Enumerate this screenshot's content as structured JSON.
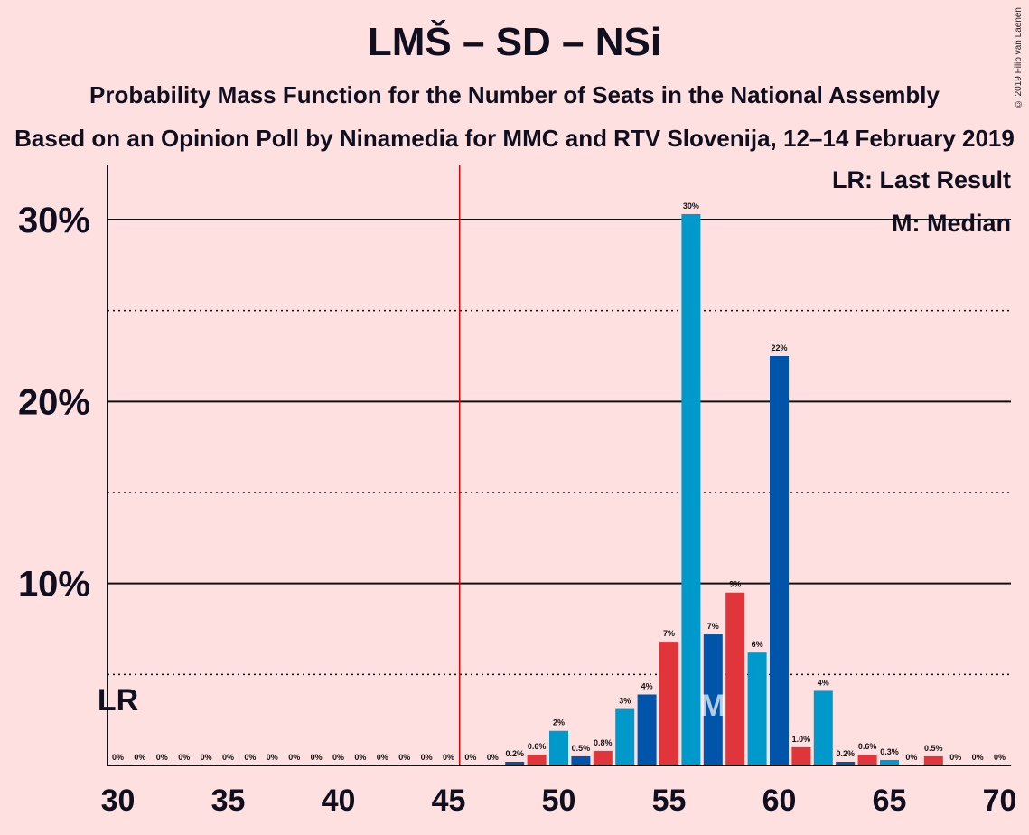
{
  "title": "LMŠ – SD – NSi",
  "subtitle1": "Probability Mass Function for the Number of Seats in the National Assembly",
  "subtitle2": "Based on an Opinion Poll by Ninamedia for MMC and RTV Slovenija, 12–14 February 2019",
  "copyright": "© 2019 Filip van Laenen",
  "legend": {
    "lr": "LR: Last Result",
    "median": "M: Median"
  },
  "colors": {
    "bg": "#ffe0e0",
    "cyan": "#0099cc",
    "blue": "#0055aa",
    "red": "#e0353b",
    "majority_line": "#dd0000"
  },
  "chart_data": {
    "type": "bar",
    "x": [
      30,
      31,
      32,
      33,
      34,
      35,
      36,
      37,
      38,
      39,
      40,
      41,
      42,
      43,
      44,
      45,
      46,
      47,
      48,
      49,
      50,
      51,
      52,
      53,
      54,
      55,
      56,
      57,
      58,
      59,
      60,
      61,
      62,
      63,
      64,
      65,
      66,
      67,
      68,
      69,
      70
    ],
    "values": [
      0,
      0,
      0,
      0,
      0,
      0,
      0,
      0,
      0,
      0,
      0,
      0,
      0,
      0,
      0,
      0,
      0,
      0,
      0.2,
      0.6,
      1.9,
      0.5,
      0.8,
      3.1,
      3.9,
      6.8,
      30.3,
      7.2,
      9.5,
      6.2,
      22.5,
      1.0,
      4.1,
      0.2,
      0.6,
      0.3,
      0,
      0.5,
      0,
      0,
      0
    ],
    "labels": [
      "0%",
      "0%",
      "0%",
      "0%",
      "0%",
      "0%",
      "0%",
      "0%",
      "0%",
      "0%",
      "0%",
      "0%",
      "0%",
      "0%",
      "0%",
      "0%",
      "0%",
      "0%",
      "0.2%",
      "0.6%",
      "2%",
      "0.5%",
      "0.8%",
      "3%",
      "4%",
      "7%",
      "30%",
      "7%",
      "9%",
      "6%",
      "22%",
      "1.0%",
      "4%",
      "0.2%",
      "0.6%",
      "0.3%",
      "0%",
      "0.5%",
      "0%",
      "0%",
      "0%"
    ],
    "bar_colors": [
      "cyan",
      "cyan",
      "cyan",
      "cyan",
      "cyan",
      "cyan",
      "cyan",
      "cyan",
      "cyan",
      "cyan",
      "cyan",
      "cyan",
      "cyan",
      "cyan",
      "cyan",
      "cyan",
      "cyan",
      "cyan",
      "blue",
      "red",
      "cyan",
      "blue",
      "red",
      "cyan",
      "blue",
      "red",
      "cyan",
      "blue",
      "red",
      "cyan",
      "blue",
      "red",
      "cyan",
      "blue",
      "red",
      "cyan",
      "blue",
      "red",
      "cyan",
      "blue",
      "red"
    ],
    "xticks": [
      30,
      35,
      40,
      45,
      50,
      55,
      60,
      65,
      70
    ],
    "xtick_labels": [
      "30",
      "35",
      "40",
      "45",
      "50",
      "55",
      "60",
      "65",
      "70"
    ],
    "ylim": [
      0,
      33
    ],
    "yticks": [
      10,
      20,
      30
    ],
    "ytick_labels": [
      "10%",
      "20%",
      "30%"
    ],
    "minor_yticks": [
      5,
      15,
      25
    ],
    "majority_line_x": 45.5,
    "last_result_x": 30,
    "last_result_label": "LR",
    "median_x": 57,
    "median_label": "M"
  }
}
